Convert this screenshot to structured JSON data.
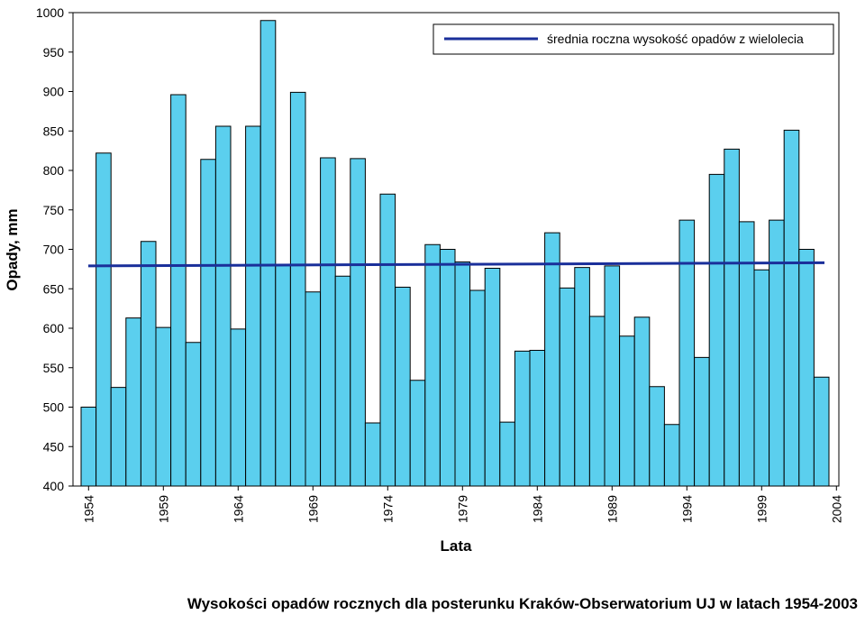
{
  "chart_data": {
    "type": "bar",
    "title": "",
    "caption": "Wysokości opadów rocznych dla posterunku Kraków-Obserwatorium UJ w latach 1954-2003",
    "xlabel": "Lata",
    "ylabel": "Opady, mm",
    "ylim": [
      400,
      1000
    ],
    "yticks": [
      400,
      450,
      500,
      550,
      600,
      650,
      700,
      750,
      800,
      850,
      900,
      950,
      1000
    ],
    "xtick_labels": [
      "1954",
      "1959",
      "1964",
      "1969",
      "1974",
      "1979",
      "1984",
      "1989",
      "1994",
      "1999",
      "2004"
    ],
    "categories": [
      "1954",
      "1955",
      "1956",
      "1957",
      "1958",
      "1959",
      "1960",
      "1961",
      "1962",
      "1963",
      "1964",
      "1965",
      "1966",
      "1967",
      "1968",
      "1969",
      "1970",
      "1971",
      "1972",
      "1973",
      "1974",
      "1975",
      "1976",
      "1977",
      "1978",
      "1979",
      "1980",
      "1981",
      "1982",
      "1983",
      "1984",
      "1985",
      "1986",
      "1987",
      "1988",
      "1989",
      "1990",
      "1991",
      "1992",
      "1993",
      "1994",
      "1995",
      "1996",
      "1997",
      "1998",
      "1999",
      "2000",
      "2001",
      "2002",
      "2003"
    ],
    "values": [
      500,
      822,
      525,
      613,
      710,
      601,
      896,
      582,
      814,
      856,
      599,
      856,
      990,
      680,
      899,
      646,
      816,
      666,
      815,
      480,
      770,
      652,
      534,
      706,
      700,
      684,
      648,
      676,
      481,
      571,
      572,
      721,
      651,
      677,
      615,
      679,
      590,
      614,
      526,
      478,
      737,
      563,
      795,
      827,
      735,
      674,
      737,
      851,
      700,
      538
    ],
    "series": [
      {
        "name": "",
        "type": "bar",
        "color": "#5bcfee"
      },
      {
        "name": "średnia roczna wysokość opadów z wielolecia",
        "type": "line",
        "color": "#1a2f9a",
        "start": 679,
        "end": 683
      }
    ],
    "legend": {
      "position": "top-right",
      "label": "średnia roczna wysokość opadów z wielolecia"
    },
    "grid": false
  }
}
